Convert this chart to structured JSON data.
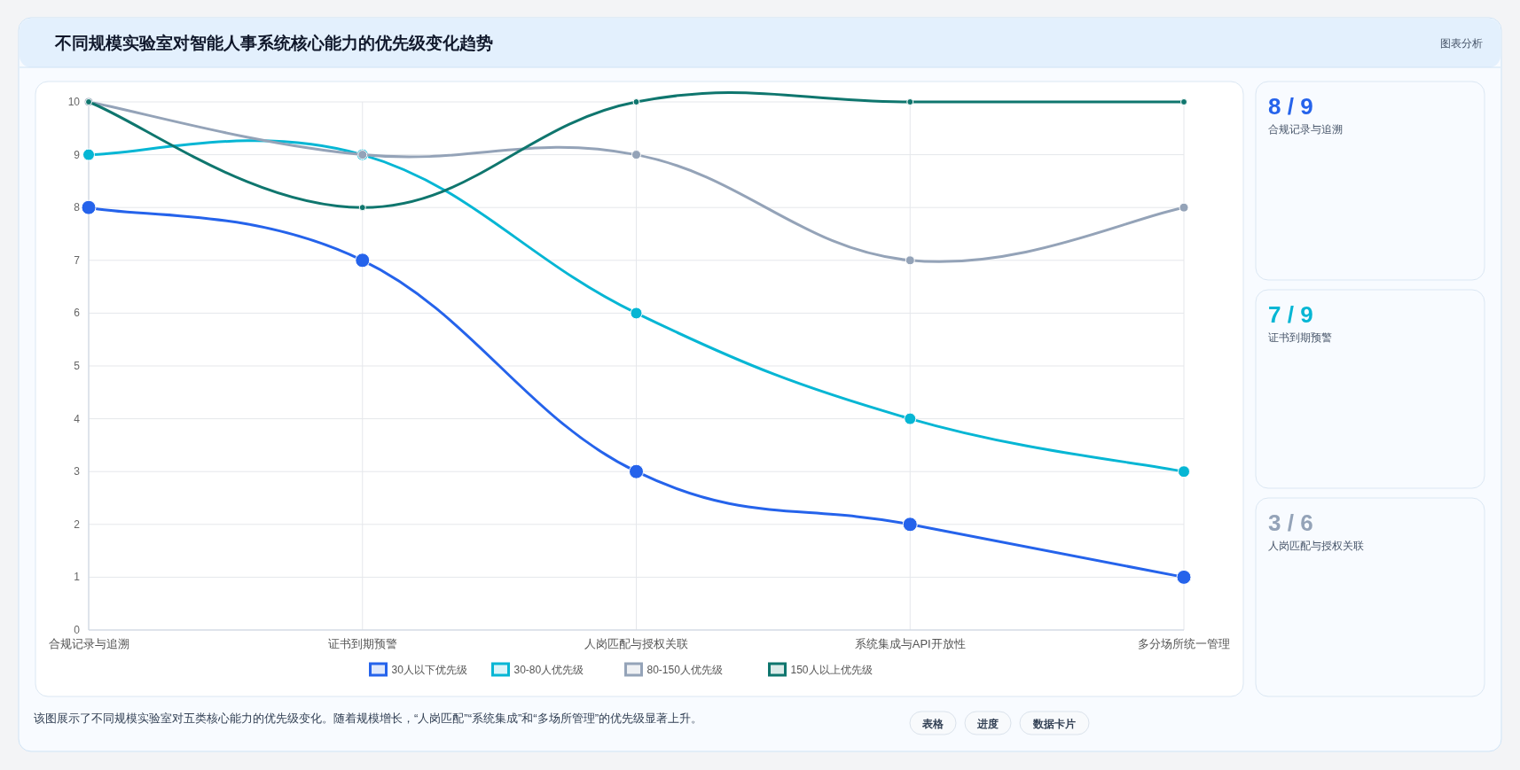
{
  "chart_data": [
    {
      "type": "line",
      "title": "不同规模实验室对智能人事系统核心能力的优先级变化趋势",
      "categories": [
        "合规记录与追溯",
        "证书到期预警",
        "人岗匹配与授权关联",
        "系统集成与API开放性",
        "多分场所统一管理"
      ],
      "series": [
        {
          "name": "30人以下优先级",
          "color": "#2563eb",
          "values": [
            8,
            7,
            3,
            2,
            1
          ]
        },
        {
          "name": "30-80人优先级",
          "color": "#06b6d4",
          "values": [
            9,
            9,
            6,
            4,
            3
          ]
        },
        {
          "name": "80-150人优先级",
          "color": "#94a3b8",
          "values": [
            10,
            9,
            9,
            7,
            8
          ]
        },
        {
          "name": "150人以上优先级",
          "color": "#0f766e",
          "values": [
            10,
            8,
            10,
            10,
            10
          ]
        }
      ],
      "ylim": [
        0,
        10
      ],
      "yticks": [
        0,
        1,
        2,
        3,
        4,
        5,
        6,
        7,
        8,
        9,
        10
      ],
      "grid": true,
      "legend": "bottom",
      "marker": "circle",
      "line_style": "solid",
      "annotations": [
        "图表分析",
        "该图展示了不同规模实验室对五类核心能力的优先级变化。随着规模增长，“人岗匹配”“系统集成”和“多场所管理”的优先级显著上升。",
        "表格",
        "进度",
        "数据卡片"
      ]
    },
    {
      "type": "other",
      "annotations": [
        "8 / 9",
        "合规记录与追溯",
        "7 / 9",
        "证书到期预警",
        "3 / 6",
        "人岗匹配与授权关联"
      ],
      "colors": [
        "#2563eb",
        "#06b6d4",
        "#94a3b8"
      ]
    }
  ]
}
